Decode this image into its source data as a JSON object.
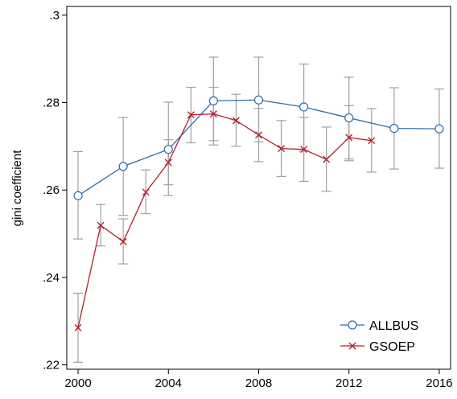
{
  "chart_data": {
    "type": "line",
    "title": "",
    "xlabel": "",
    "ylabel": "gini coefficient",
    "xlim": [
      1999.5,
      2016.5
    ],
    "ylim": [
      0.219,
      0.302
    ],
    "x_ticks": [
      2000,
      2004,
      2008,
      2012,
      2016
    ],
    "y_ticks": [
      0.22,
      0.24,
      0.26,
      0.28,
      0.3
    ],
    "y_tick_labels": [
      ".22",
      ".24",
      ".26",
      ".28",
      ".3"
    ],
    "grid": false,
    "legend_position": "bottom-right",
    "error_bar_color": "#a0a0a0",
    "series": [
      {
        "name": "ALLBUS",
        "color": "#2f6fa5",
        "marker": "circle",
        "x": [
          2000,
          2002,
          2004,
          2006,
          2008,
          2010,
          2012,
          2014,
          2016
        ],
        "y": [
          0.2587,
          0.2654,
          0.2693,
          0.2804,
          0.2806,
          0.279,
          0.2765,
          0.2741,
          0.274
        ],
        "lower": [
          0.2488,
          0.2542,
          0.2587,
          0.2703,
          0.271,
          0.2689,
          0.2671,
          0.2648,
          0.265
        ],
        "upper": [
          0.2688,
          0.2766,
          0.2801,
          0.2904,
          0.2904,
          0.2888,
          0.2858,
          0.2834,
          0.2831
        ]
      },
      {
        "name": "GSOEP",
        "color": "#b2202f",
        "marker": "x",
        "x": [
          2000,
          2001,
          2002,
          2003,
          2004,
          2005,
          2006,
          2007,
          2008,
          2009,
          2010,
          2011,
          2012,
          2013
        ],
        "y": [
          0.2285,
          0.2519,
          0.2482,
          0.2595,
          0.2663,
          0.2772,
          0.2774,
          0.2759,
          0.2726,
          0.2695,
          0.2693,
          0.267,
          0.272,
          0.2713
        ],
        "lower": [
          0.2206,
          0.2472,
          0.2431,
          0.2546,
          0.2612,
          0.2708,
          0.2713,
          0.27,
          0.2665,
          0.2631,
          0.262,
          0.2597,
          0.2667,
          0.2641
        ],
        "upper": [
          0.2364,
          0.2567,
          0.2534,
          0.2646,
          0.2715,
          0.2835,
          0.2835,
          0.2819,
          0.2787,
          0.2759,
          0.2766,
          0.2744,
          0.2793,
          0.2786
        ]
      }
    ]
  }
}
